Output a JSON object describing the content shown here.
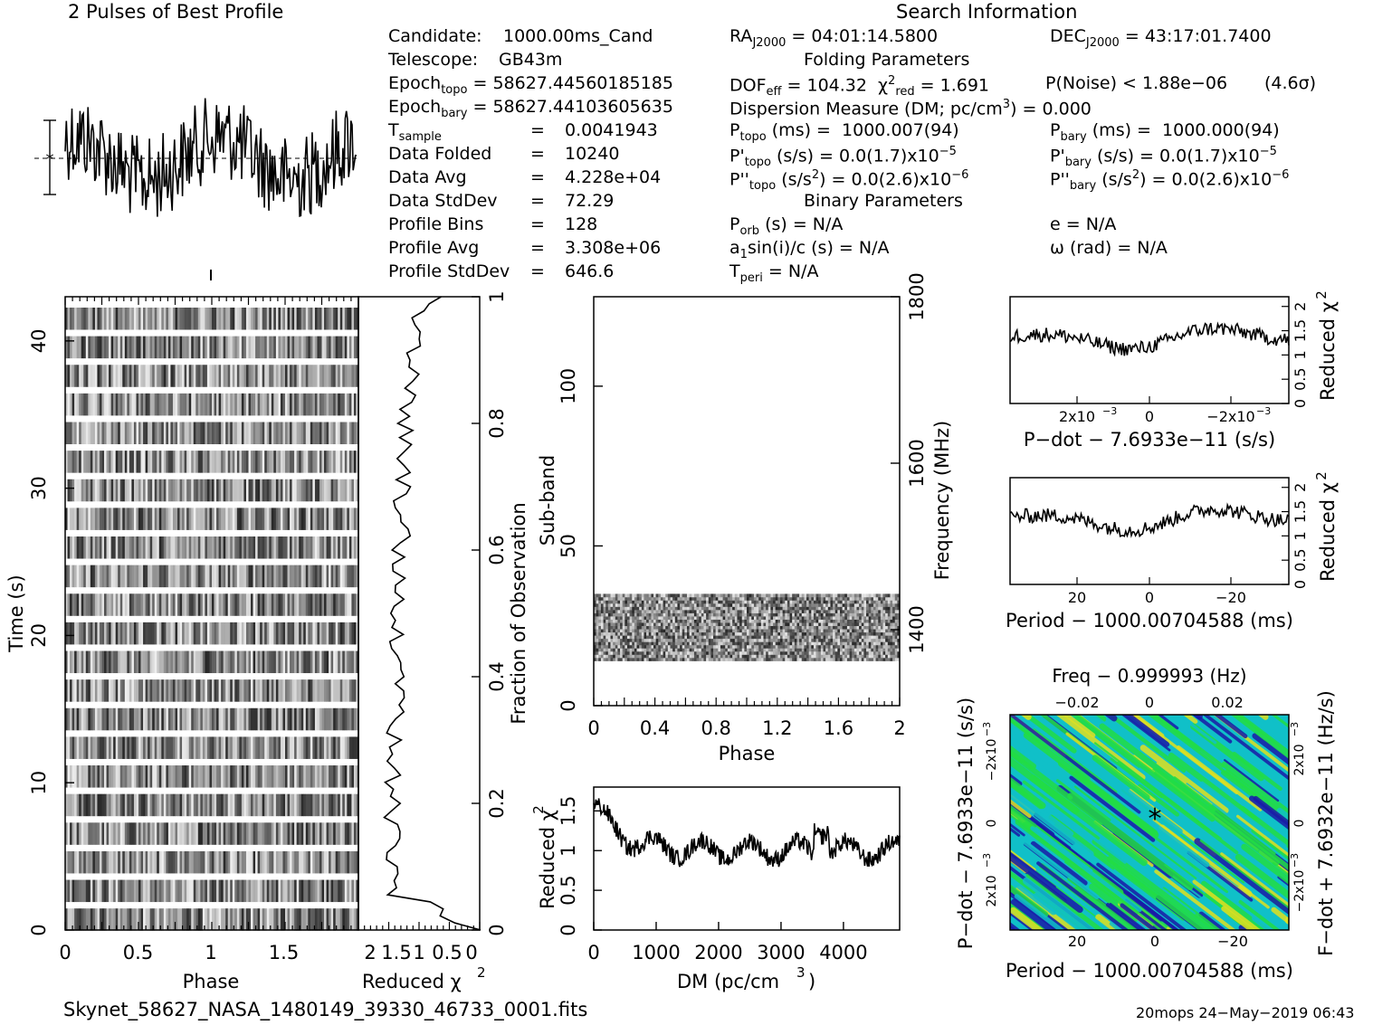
{
  "header": {
    "profile_title": "2 Pulses of Best Profile",
    "search_title": "Search Information",
    "candidate_label": "Candidate:",
    "candidate_value": "1000.00ms_Cand",
    "telescope_label": "Telescope:",
    "telescope_value": "GB43m",
    "epoch_topo": "58627.44560185185",
    "epoch_bary": "58627.44103605635",
    "tsample": "0.0041943",
    "data_folded": "10240",
    "data_avg": "4.228e+04",
    "data_stddev": "72.29",
    "profile_bins": "128",
    "profile_avg": "3.308e+06",
    "profile_stddev": "646.6",
    "ra": "04:01:14.5800",
    "dec": "43:17:01.7400",
    "folding_title": "Folding Parameters",
    "dof_eff": "104.32",
    "chi2_red": "1.691",
    "pnoise": "P(Noise) < 1.88e−06",
    "sigma": "(4.6σ)",
    "dm_line": "Dispersion Measure (DM; pc/cm",
    "dm_value": ") = 0.000",
    "ptopo": "1000.007(94)",
    "pbary": "1000.000(94)",
    "pdot_val": "0.0(1.7)x10",
    "pdot_exp": "−5",
    "pddot_val": "0.0(2.6)x10",
    "pddot_exp": "−6",
    "binary_title": "Binary Parameters",
    "porb": "N/A",
    "e": "N/A",
    "asini": "N/A",
    "omega": "N/A",
    "tperi": "N/A"
  },
  "footer": {
    "filename": "Skynet_58627_NASA_1480149_39330_46733_0001.fits",
    "stamp": "20mops 24−May−2019 06:43"
  },
  "colors": {
    "heat_low": "#1a1aa8",
    "heat_mid": "#10c0c8",
    "heat_high": "#22dd44",
    "heat_peak": "#e0e020"
  },
  "chart_data": [
    {
      "type": "line",
      "title": "2 Pulses of Best Profile",
      "x_range": [
        0,
        2
      ],
      "note_free": true,
      "series": [
        {
          "values_description_free": true
        }
      ]
    },
    {
      "type": "heatmap",
      "xlabel": "Phase",
      "ylabel": "Time (s)",
      "x_ticks": [
        "0",
        "0.5",
        "1",
        "1.5"
      ],
      "y_ticks": [
        "0",
        "10",
        "20",
        "30",
        "40"
      ],
      "ylim": [
        0,
        43
      ]
    },
    {
      "type": "line",
      "xlabel": "Reduced χ²",
      "x_ticks": [
        "2",
        "1.5",
        "1",
        "0.5",
        "0"
      ],
      "y2label": "Fraction of Observation",
      "y2_ticks": [
        "0",
        "0.2",
        "0.4",
        "0.6",
        "0.8",
        "1"
      ]
    },
    {
      "type": "heatmap",
      "xlabel": "Phase",
      "ylabel": "Sub-band",
      "y2label": "Frequency (MHz)",
      "x_ticks": [
        "0",
        "0.4",
        "0.8",
        "1.2",
        "1.6",
        "2"
      ],
      "y_ticks": [
        "0",
        "50",
        "100"
      ],
      "y2_ticks": [
        "1400",
        "1600",
        "1800"
      ],
      "ylim": [
        0,
        128
      ],
      "filled_subbands": [
        14,
        35
      ]
    },
    {
      "type": "line",
      "xlabel": "DM (pc/cm",
      "ylabel": "Reduced χ²",
      "x_ticks": [
        "0",
        "1000",
        "2000",
        "3000",
        "4000"
      ],
      "y_ticks": [
        "0",
        "0.5",
        "1",
        "1.5"
      ],
      "xlim": [
        0,
        4900
      ],
      "ylim": [
        0,
        1.8
      ]
    },
    {
      "type": "line",
      "xlabel": "P−dot − 7.6933e−11 (s/s)",
      "ylabel": "Reduced χ²",
      "x_ticks": [
        "2x10",
        "0",
        "−2x10"
      ],
      "x_tick_exp": "−3",
      "y_ticks": [
        "0",
        "0.5",
        "1",
        "1.5",
        "2"
      ],
      "ylim": [
        0,
        2.2
      ]
    },
    {
      "type": "line",
      "xlabel": "Period − 1000.00704588 (ms)",
      "ylabel": "Reduced χ²",
      "x_ticks": [
        "20",
        "0",
        "−20"
      ],
      "y_ticks": [
        "0",
        "0.5",
        "1",
        "1.5",
        "2"
      ],
      "ylim": [
        0,
        2.2
      ]
    },
    {
      "type": "heatmap",
      "title": "Freq − 0.999993 (Hz)",
      "top_ticks": [
        "−0.02",
        "0",
        "0.02"
      ],
      "xlabel": "Period − 1000.00704588 (ms)",
      "x_ticks": [
        "20",
        "0",
        "−20"
      ],
      "ylabel": "P−dot − 7.6933e−11 (s/s)",
      "y_ticks": [
        "−2x10",
        "0",
        "2x10"
      ],
      "y2label": "F−dot + 7.6932e−11 (Hz/s)",
      "y2_ticks": [
        "2x10",
        "0",
        "−2x10"
      ],
      "tick_exp": "−3"
    }
  ]
}
